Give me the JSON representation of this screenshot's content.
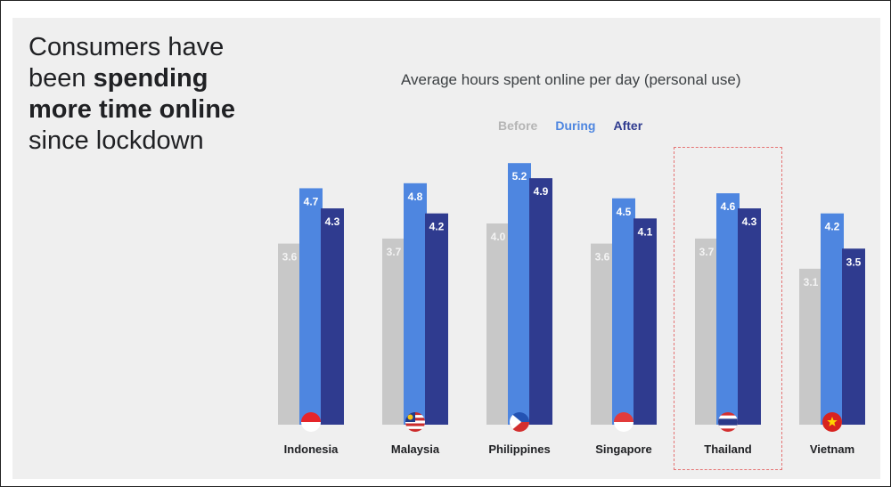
{
  "headline": {
    "line1": "Consumers have",
    "line2_prefix": "been ",
    "line2_bold": "spending",
    "line3_bold": "more time online",
    "line4": "since lockdown"
  },
  "chart_data": {
    "type": "bar",
    "title": "Average hours spent online per day (personal use)",
    "categories": [
      "Indonesia",
      "Malaysia",
      "Philippines",
      "Singapore",
      "Thailand",
      "Vietnam"
    ],
    "series": [
      {
        "name": "Before",
        "color": "#c8c8c8",
        "label_color": "#f3f3f3",
        "values": [
          3.6,
          3.7,
          4.0,
          3.6,
          3.7,
          3.1
        ]
      },
      {
        "name": "During",
        "color": "#4e86e0",
        "label_color": "#ffffff",
        "values": [
          4.7,
          4.8,
          5.2,
          4.5,
          4.6,
          4.2
        ]
      },
      {
        "name": "After",
        "color": "#2f3b8f",
        "label_color": "#ffffff",
        "values": [
          4.3,
          4.2,
          4.9,
          4.1,
          4.3,
          3.5
        ]
      }
    ],
    "legend_colors": [
      "#b5b5b5",
      "#4e86e0",
      "#2f3b8f"
    ],
    "highlighted_category": "Thailand",
    "flag_icons": [
      "indonesia-flag-icon",
      "malaysia-flag-icon",
      "philippines-flag-icon",
      "singapore-flag-icon",
      "thailand-flag-icon",
      "vietnam-flag-icon"
    ],
    "ylim": [
      0,
      5.5
    ],
    "grid": false,
    "legend_position": "top-center"
  }
}
